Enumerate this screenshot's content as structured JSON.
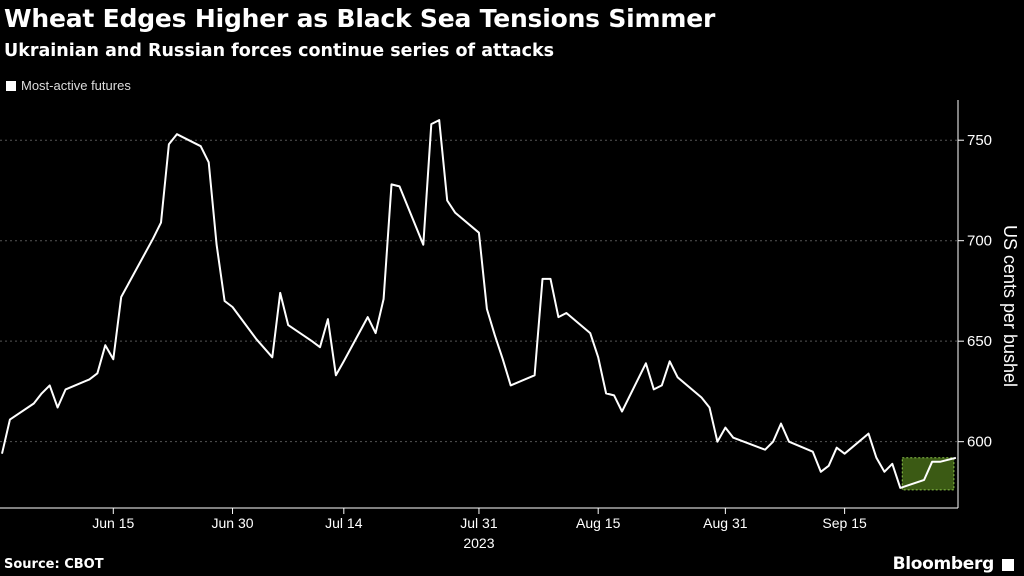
{
  "header": {
    "title": "Wheat Edges Higher as Black Sea Tensions Simmer",
    "subtitle": "Ukrainian and Russian forces continue series of attacks"
  },
  "legend": {
    "label": "Most-active futures"
  },
  "footer": {
    "source": "Source: CBOT",
    "brand": "Bloomberg"
  },
  "colors": {
    "background": "#000000",
    "line": "#ffffff",
    "highlight_fill": "#3b5a14",
    "highlight_border": "#8bc34a",
    "grid": "#555555"
  },
  "chart_data": {
    "type": "line",
    "title": "Wheat Edges Higher as Black Sea Tensions Simmer",
    "subtitle": "Ukrainian and Russian forces continue series of attacks",
    "ylabel": "US cents per bushel",
    "xlabel": "2023",
    "ylim": [
      567,
      770
    ],
    "yticks": [
      600,
      650,
      700,
      750
    ],
    "grid": true,
    "legend_position": "top-left",
    "x_range": [
      "2023-06-01",
      "2023-09-27"
    ],
    "xticks": [
      {
        "date": "2023-06-15",
        "label": "Jun 15"
      },
      {
        "date": "2023-06-30",
        "label": "Jun 30"
      },
      {
        "date": "2023-07-14",
        "label": "Jul 14"
      },
      {
        "date": "2023-07-31",
        "label": "Jul 31"
      },
      {
        "date": "2023-08-15",
        "label": "Aug 15"
      },
      {
        "date": "2023-08-31",
        "label": "Aug 31"
      },
      {
        "date": "2023-09-15",
        "label": "Sep 15"
      }
    ],
    "series": [
      {
        "name": "Most-active futures",
        "points": [
          [
            "2023-06-01",
            594
          ],
          [
            "2023-06-02",
            611
          ],
          [
            "2023-06-05",
            619
          ],
          [
            "2023-06-06",
            624
          ],
          [
            "2023-06-07",
            628
          ],
          [
            "2023-06-08",
            617
          ],
          [
            "2023-06-09",
            626
          ],
          [
            "2023-06-12",
            631
          ],
          [
            "2023-06-13",
            634
          ],
          [
            "2023-06-14",
            648
          ],
          [
            "2023-06-15",
            641
          ],
          [
            "2023-06-16",
            672
          ],
          [
            "2023-06-20",
            701
          ],
          [
            "2023-06-21",
            709
          ],
          [
            "2023-06-22",
            748
          ],
          [
            "2023-06-23",
            753
          ],
          [
            "2023-06-26",
            747
          ],
          [
            "2023-06-27",
            739
          ],
          [
            "2023-06-28",
            698
          ],
          [
            "2023-06-29",
            670
          ],
          [
            "2023-06-30",
            667
          ],
          [
            "2023-07-03",
            651
          ],
          [
            "2023-07-05",
            642
          ],
          [
            "2023-07-06",
            674
          ],
          [
            "2023-07-07",
            658
          ],
          [
            "2023-07-10",
            650
          ],
          [
            "2023-07-11",
            647
          ],
          [
            "2023-07-12",
            661
          ],
          [
            "2023-07-13",
            633
          ],
          [
            "2023-07-14",
            640
          ],
          [
            "2023-07-17",
            662
          ],
          [
            "2023-07-18",
            654
          ],
          [
            "2023-07-19",
            671
          ],
          [
            "2023-07-20",
            728
          ],
          [
            "2023-07-21",
            727
          ],
          [
            "2023-07-24",
            698
          ],
          [
            "2023-07-25",
            758
          ],
          [
            "2023-07-26",
            760
          ],
          [
            "2023-07-27",
            720
          ],
          [
            "2023-07-28",
            714
          ],
          [
            "2023-07-31",
            704
          ],
          [
            "2023-08-01",
            666
          ],
          [
            "2023-08-02",
            653
          ],
          [
            "2023-08-03",
            641
          ],
          [
            "2023-08-04",
            628
          ],
          [
            "2023-08-07",
            633
          ],
          [
            "2023-08-08",
            681
          ],
          [
            "2023-08-09",
            681
          ],
          [
            "2023-08-10",
            662
          ],
          [
            "2023-08-11",
            664
          ],
          [
            "2023-08-14",
            654
          ],
          [
            "2023-08-15",
            642
          ],
          [
            "2023-08-16",
            624
          ],
          [
            "2023-08-17",
            623
          ],
          [
            "2023-08-18",
            615
          ],
          [
            "2023-08-21",
            639
          ],
          [
            "2023-08-22",
            626
          ],
          [
            "2023-08-23",
            628
          ],
          [
            "2023-08-24",
            640
          ],
          [
            "2023-08-25",
            632
          ],
          [
            "2023-08-28",
            622
          ],
          [
            "2023-08-29",
            617
          ],
          [
            "2023-08-30",
            600
          ],
          [
            "2023-08-31",
            607
          ],
          [
            "2023-09-01",
            602
          ],
          [
            "2023-09-05",
            596
          ],
          [
            "2023-09-06",
            600
          ],
          [
            "2023-09-07",
            609
          ],
          [
            "2023-09-08",
            600
          ],
          [
            "2023-09-11",
            595
          ],
          [
            "2023-09-12",
            585
          ],
          [
            "2023-09-13",
            588
          ],
          [
            "2023-09-14",
            597
          ],
          [
            "2023-09-15",
            594
          ],
          [
            "2023-09-18",
            604
          ],
          [
            "2023-09-19",
            592
          ],
          [
            "2023-09-20",
            585
          ],
          [
            "2023-09-21",
            589
          ],
          [
            "2023-09-22",
            577
          ],
          [
            "2023-09-25",
            581
          ],
          [
            "2023-09-26",
            590
          ],
          [
            "2023-09-27",
            590
          ],
          [
            "2023-09-28",
            591
          ],
          [
            "2023-09-29",
            592
          ]
        ]
      }
    ],
    "highlight": {
      "x_start": "2023-09-22",
      "x_end": "2023-09-29",
      "y_low": 576,
      "y_high": 592
    }
  }
}
